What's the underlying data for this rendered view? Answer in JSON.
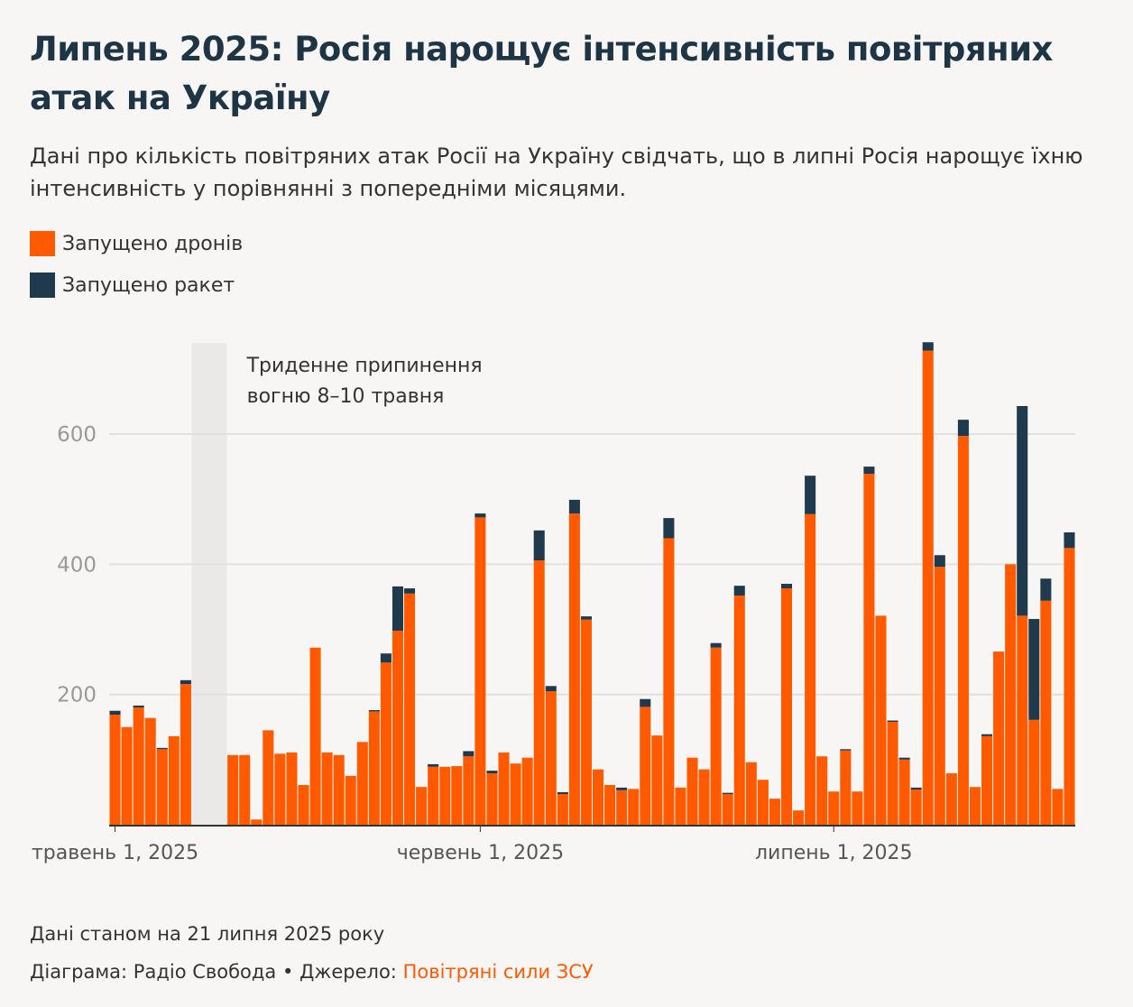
{
  "chart_data": {
    "type": "bar",
    "stacked": true,
    "title": "Липень 2025: Росія нарощує інтенсивність повітряних атак на Україну",
    "subtitle": "Дані про кількість повітряних атак Росії на Україну свідчать, що в липні Росія нарощує їхню інтенсивність у порівнянні з попередніми місяцями.",
    "x": [
      "2025-05-01",
      "2025-05-02",
      "2025-05-03",
      "2025-05-04",
      "2025-05-05",
      "2025-05-06",
      "2025-05-07",
      "2025-05-08",
      "2025-05-09",
      "2025-05-10",
      "2025-05-11",
      "2025-05-12",
      "2025-05-13",
      "2025-05-14",
      "2025-05-15",
      "2025-05-16",
      "2025-05-17",
      "2025-05-18",
      "2025-05-19",
      "2025-05-20",
      "2025-05-21",
      "2025-05-22",
      "2025-05-23",
      "2025-05-24",
      "2025-05-25",
      "2025-05-26",
      "2025-05-27",
      "2025-05-28",
      "2025-05-29",
      "2025-05-30",
      "2025-05-31",
      "2025-06-01",
      "2025-06-02",
      "2025-06-03",
      "2025-06-04",
      "2025-06-05",
      "2025-06-06",
      "2025-06-07",
      "2025-06-08",
      "2025-06-09",
      "2025-06-10",
      "2025-06-11",
      "2025-06-12",
      "2025-06-13",
      "2025-06-14",
      "2025-06-15",
      "2025-06-16",
      "2025-06-17",
      "2025-06-18",
      "2025-06-19",
      "2025-06-20",
      "2025-06-21",
      "2025-06-22",
      "2025-06-23",
      "2025-06-24",
      "2025-06-25",
      "2025-06-26",
      "2025-06-27",
      "2025-06-28",
      "2025-06-29",
      "2025-06-30",
      "2025-07-01",
      "2025-07-02",
      "2025-07-03",
      "2025-07-04",
      "2025-07-05",
      "2025-07-06",
      "2025-07-07",
      "2025-07-08",
      "2025-07-09",
      "2025-07-10",
      "2025-07-11",
      "2025-07-12",
      "2025-07-13",
      "2025-07-14",
      "2025-07-15",
      "2025-07-16",
      "2025-07-17",
      "2025-07-18",
      "2025-07-19",
      "2025-07-20",
      "2025-07-21"
    ],
    "series": [
      {
        "name": "Запущено дронів",
        "color": "#ff5a00",
        "values": [
          169,
          150,
          180,
          164,
          116,
          136,
          216,
          null,
          null,
          null,
          107,
          107,
          8,
          145,
          109,
          111,
          61,
          272,
          111,
          107,
          75,
          127,
          174,
          249,
          298,
          355,
          58,
          89,
          89,
          90,
          105,
          472,
          79,
          111,
          94,
          103,
          406,
          205,
          47,
          478,
          315,
          85,
          61,
          53,
          55,
          181,
          137,
          440,
          57,
          103,
          85,
          272,
          47,
          352,
          96,
          69,
          40,
          363,
          22,
          477,
          105,
          51,
          114,
          51,
          539,
          321,
          158,
          100,
          54,
          728,
          396,
          79,
          597,
          58,
          136,
          266,
          400,
          321,
          161,
          344,
          55,
          425
        ]
      },
      {
        "name": "Запущено ракет",
        "color": "#1e3a4c",
        "values": [
          6,
          0,
          3,
          0,
          2,
          0,
          6,
          null,
          null,
          null,
          0,
          0,
          0,
          0,
          0,
          0,
          0,
          0,
          0,
          0,
          0,
          0,
          2,
          14,
          68,
          8,
          0,
          4,
          0,
          0,
          8,
          6,
          4,
          0,
          0,
          0,
          46,
          8,
          3,
          21,
          5,
          0,
          0,
          4,
          0,
          12,
          0,
          31,
          0,
          0,
          0,
          7,
          2,
          15,
          0,
          0,
          0,
          7,
          0,
          59,
          0,
          0,
          2,
          0,
          11,
          0,
          2,
          3,
          3,
          13,
          18,
          0,
          25,
          0,
          3,
          0,
          0,
          322,
          155,
          34,
          0,
          24
        ]
      }
    ],
    "xticks": [
      {
        "value": "2025-05-01",
        "label": "травень 1, 2025"
      },
      {
        "value": "2025-06-01",
        "label": "червень 1, 2025"
      },
      {
        "value": "2025-07-01",
        "label": "липень 1, 2025"
      }
    ],
    "ylim": [
      0,
      740
    ],
    "yticks": [
      200,
      400,
      600
    ],
    "grid": true,
    "annotation": {
      "text": [
        "Триденне припинення",
        "вогню 8–10 травня"
      ],
      "from": "2025-05-08",
      "to": "2025-05-10"
    },
    "note": "Дані станом на 21 липня 2025 року",
    "credit": "Діаграма: Радіо Свобода • Джерело:",
    "source": "Повітряні сили ЗСУ"
  }
}
